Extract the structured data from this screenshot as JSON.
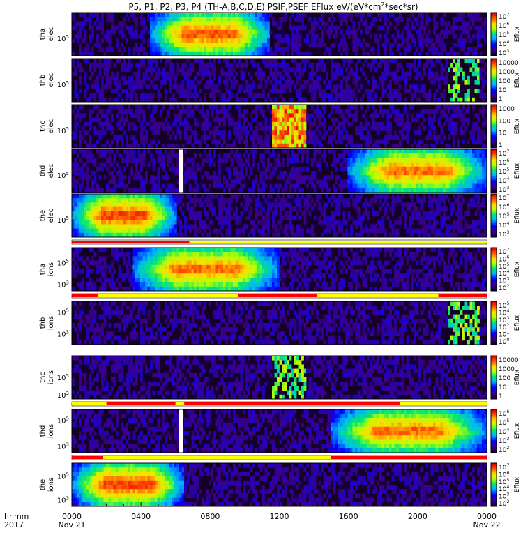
{
  "chart_data": {
    "type": "heatmap",
    "title": "P5, P1, P2, P3, P4 (TH-A,B,C,D,E) PSIF,PSEF EFlux eV/(eV*cm",
    "title_sup": "2",
    "title_end": "*sec*sr)",
    "x_time_hours": [
      0,
      4,
      8,
      12,
      16,
      20,
      24
    ],
    "x_tick_labels": [
      "0000",
      "0400",
      "0800",
      "1200",
      "1600",
      "2000",
      "0000"
    ],
    "x_date_labels": [
      "Nov 21",
      "",
      "",
      "",
      "",
      "",
      "Nov 22"
    ],
    "x_row_label": "hhmm",
    "x_row_label2": "2017",
    "colorbar_label": "Eflux",
    "panels": [
      {
        "label1": "tha",
        "label2": "elec",
        "yticks": [
          {
            "t": "10",
            "s": "5",
            "pos": 0.6
          }
        ],
        "cbar": [
          [
            "10",
            "7"
          ],
          [
            "10",
            "6"
          ],
          [
            "10",
            "5"
          ],
          [
            "10",
            "4"
          ],
          [
            "10",
            "3"
          ]
        ],
        "bursts": [
          [
            4.5,
            11.5
          ]
        ],
        "burst_level": 0.88,
        "background": "quiet"
      },
      {
        "label1": "thb",
        "label2": "elec",
        "yticks": [
          {
            "t": "10",
            "s": "5",
            "pos": 0.6
          }
        ],
        "cbar": [
          [
            "10000",
            ""
          ],
          [
            "1000",
            ""
          ],
          [
            "100",
            ""
          ],
          [
            "10",
            ""
          ],
          [
            "1",
            ""
          ]
        ],
        "bursts": [],
        "burst_level": 0,
        "background": "quiet",
        "sparse_block": [
          21.8,
          23.6
        ]
      },
      {
        "label1": "thc",
        "label2": "elec",
        "yticks": [
          {
            "t": "10",
            "s": "5",
            "pos": 0.6
          }
        ],
        "cbar": [
          [
            "1000",
            ""
          ],
          [
            "100",
            ""
          ],
          [
            "10",
            ""
          ],
          [
            "1",
            ""
          ]
        ],
        "bursts": [],
        "burst_level": 0,
        "background": "quiet",
        "hot_block": [
          11.6,
          13.5
        ]
      },
      {
        "label1": "thd",
        "label2": "elec",
        "yticks": [
          {
            "t": "10",
            "s": "5",
            "pos": 0.6
          }
        ],
        "cbar": [
          [
            "10",
            "7"
          ],
          [
            "10",
            "6"
          ],
          [
            "10",
            "5"
          ],
          [
            "10",
            "4"
          ],
          [
            "10",
            "3"
          ]
        ],
        "bursts": [
          [
            16.0,
            24.0
          ]
        ],
        "burst_level": 0.85,
        "background": "quiet",
        "gap": [
          6.2,
          6.45
        ]
      },
      {
        "label1": "the",
        "label2": "elec",
        "yticks": [
          {
            "t": "10",
            "s": "5",
            "pos": 0.6
          }
        ],
        "cbar": [
          [
            "10",
            "7"
          ],
          [
            "10",
            "6"
          ],
          [
            "10",
            "5"
          ],
          [
            "10",
            "4"
          ],
          [
            "10",
            "3"
          ]
        ],
        "bursts": [
          [
            0.0,
            6.0
          ]
        ],
        "burst_level": 0.9,
        "background": "quiet"
      },
      {
        "label1": "tha",
        "label2": "ions",
        "yticks": [
          {
            "t": "10",
            "s": "5",
            "pos": 0.35
          },
          {
            "t": "10",
            "s": "3",
            "pos": 0.85
          }
        ],
        "cbar": [
          [
            "10",
            "7"
          ],
          [
            "10",
            "6"
          ],
          [
            "10",
            "5"
          ],
          [
            "10",
            "4"
          ],
          [
            "10",
            "3"
          ],
          [
            "10",
            "2"
          ]
        ],
        "bursts": [
          [
            3.5,
            12.0
          ]
        ],
        "burst_level": 0.85,
        "background": "quiet"
      },
      {
        "label1": "thb",
        "label2": "ions",
        "yticks": [
          {
            "t": "10",
            "s": "5",
            "pos": 0.25
          },
          {
            "t": "10",
            "s": "3",
            "pos": 0.75
          }
        ],
        "cbar": [
          [
            "10",
            "5"
          ],
          [
            "10",
            "4"
          ],
          [
            "10",
            "3"
          ],
          [
            "10",
            "2"
          ],
          [
            "10",
            "1"
          ],
          [
            "10",
            "0"
          ]
        ],
        "bursts": [],
        "burst_level": 0,
        "background": "quiet",
        "sparse_block": [
          21.8,
          23.6
        ]
      },
      {
        "label1": "thc",
        "label2": "ions",
        "yticks": [
          {
            "t": "10",
            "s": "5",
            "pos": 0.5
          },
          {
            "t": "10",
            "s": "3",
            "pos": 0.9
          }
        ],
        "cbar": [
          [
            "10000",
            ""
          ],
          [
            "1000",
            ""
          ],
          [
            "100",
            ""
          ],
          [
            "10",
            ""
          ],
          [
            "1",
            ""
          ]
        ],
        "bursts": [],
        "burst_level": 0,
        "background": "quiet",
        "sparse_block": [
          11.6,
          13.5
        ]
      },
      {
        "label1": "thd",
        "label2": "ions",
        "yticks": [
          {
            "t": "10",
            "s": "5",
            "pos": 0.25
          },
          {
            "t": "10",
            "s": "3",
            "pos": 0.85
          }
        ],
        "cbar": [
          [
            "10",
            "6"
          ],
          [
            "10",
            "5"
          ],
          [
            "10",
            "4"
          ],
          [
            "10",
            "3"
          ],
          [
            "10",
            "2"
          ]
        ],
        "bursts": [
          [
            15.0,
            24.0
          ]
        ],
        "burst_level": 0.85,
        "background": "quiet",
        "gap": [
          6.2,
          6.45
        ]
      },
      {
        "label1": "the",
        "label2": "ions",
        "yticks": [
          {
            "t": "10",
            "s": "5",
            "pos": 0.3
          },
          {
            "t": "10",
            "s": "3",
            "pos": 0.85
          }
        ],
        "cbar": [
          [
            "10",
            "7"
          ],
          [
            "10",
            "6"
          ],
          [
            "10",
            "5"
          ],
          [
            "10",
            "4"
          ],
          [
            "10",
            "3"
          ],
          [
            "10",
            "2"
          ]
        ],
        "bursts": [
          [
            0.0,
            6.5
          ]
        ],
        "burst_level": 0.9,
        "background": "quiet"
      }
    ],
    "mode_bars": [
      {
        "after_panel": 4,
        "segments": [
          [
            0.0,
            6.8,
            "#ff0000"
          ],
          [
            6.8,
            24.0,
            "#ffff00"
          ]
        ]
      },
      {
        "after_panel": 5,
        "segments": [
          [
            0.0,
            1.5,
            "#ff0000"
          ],
          [
            1.5,
            9.6,
            "#ffff00"
          ],
          [
            9.6,
            14.2,
            "#ff0000"
          ],
          [
            14.2,
            21.2,
            "#ffff00"
          ],
          [
            21.2,
            24.0,
            "#ff0000"
          ]
        ]
      },
      {
        "after_panel": 7,
        "segments": [
          [
            0.0,
            2.0,
            "#ffff00"
          ],
          [
            2.0,
            6.0,
            "#ff0000"
          ],
          [
            6.0,
            6.5,
            "#ffff00"
          ],
          [
            6.5,
            19.0,
            "#ff0000"
          ],
          [
            19.0,
            24.0,
            "#ffff00"
          ]
        ]
      },
      {
        "after_panel": 8,
        "segments": [
          [
            0.0,
            1.8,
            "#ff0000"
          ],
          [
            1.8,
            15.0,
            "#ffff00"
          ],
          [
            15.0,
            24.0,
            "#ff0000"
          ]
        ]
      }
    ]
  }
}
